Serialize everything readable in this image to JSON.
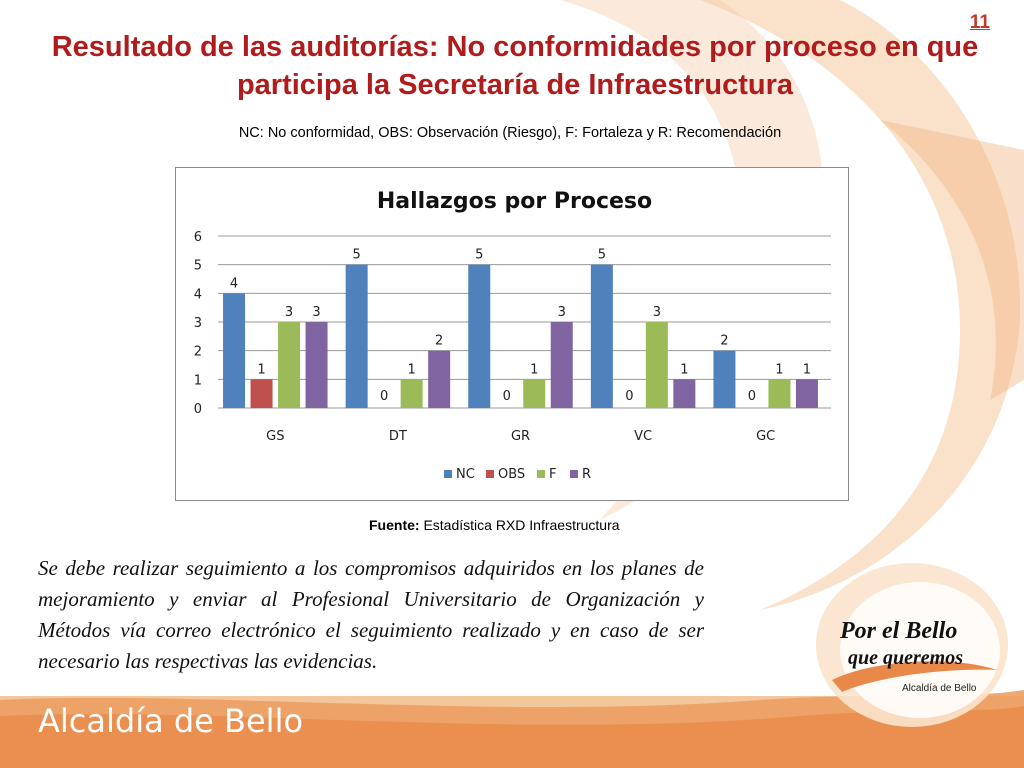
{
  "slide_number": "11",
  "title": "Resultado de las auditorías: No conformidades por proceso en que participa la Secretaría de Infraestructura",
  "subtitle": "NC: No conformidad, OBS: Observación (Riesgo), F: Fortaleza y R: Recomendación",
  "source": {
    "label": "Fuente:",
    "text": "Estadística RXD Infraestructura"
  },
  "body_text": "Se debe realizar seguimiento a los compromisos adquiridos en los planes de mejoramiento y enviar al Profesional Universitario de Organización y Métodos vía correo electrónico el seguimiento realizado y en caso de ser necesario las respectivas las evidencias.",
  "footer_brand": "Alcaldía de Bello",
  "badge": {
    "line1": "Por el Bello",
    "line2": "que queremos",
    "line3": "Alcaldía de Bello"
  },
  "colors": {
    "title": "#b01c1c",
    "NC": "#4f81bd",
    "OBS": "#c0504d",
    "F": "#9bbb59",
    "R": "#8064a2",
    "footer_band": "#f0b27a"
  },
  "chart_data": {
    "type": "bar",
    "title": "Hallazgos por Proceso",
    "categories": [
      "GS",
      "DT",
      "GR",
      "VC",
      "GC"
    ],
    "series": [
      {
        "name": "NC",
        "color": "#4f81bd",
        "values": [
          4,
          5,
          5,
          5,
          2
        ]
      },
      {
        "name": "OBS",
        "color": "#c0504d",
        "values": [
          1,
          0,
          0,
          0,
          0
        ]
      },
      {
        "name": "F",
        "color": "#9bbb59",
        "values": [
          3,
          1,
          1,
          3,
          1
        ]
      },
      {
        "name": "R",
        "color": "#8064a2",
        "values": [
          3,
          2,
          3,
          1,
          1
        ]
      }
    ],
    "ylim": [
      0,
      6
    ],
    "yticks": [
      0,
      1,
      2,
      3,
      4,
      5,
      6
    ],
    "grid": true,
    "legend": "bottom",
    "data_labels": true
  }
}
